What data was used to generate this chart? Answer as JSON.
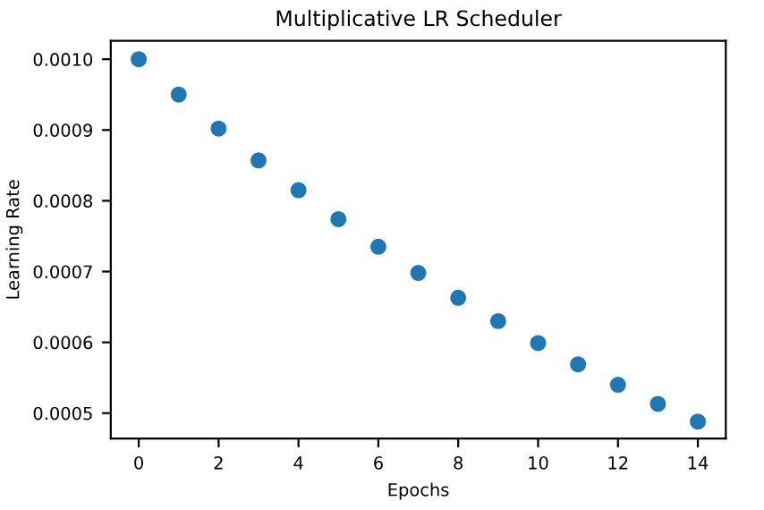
{
  "chart_data": {
    "type": "scatter",
    "title": "Multiplicative LR Scheduler",
    "xlabel": "Epochs",
    "ylabel": "Learning Rate",
    "x": [
      0,
      1,
      2,
      3,
      4,
      5,
      6,
      7,
      8,
      9,
      10,
      11,
      12,
      13,
      14
    ],
    "series": [
      {
        "color": "#1f77b4",
        "values": [
          0.001,
          0.00095,
          0.000902,
          0.000857,
          0.000815,
          0.000774,
          0.000735,
          0.000698,
          0.000663,
          0.00063,
          0.000599,
          0.000569,
          0.00054,
          0.000513,
          0.000488
        ]
      }
    ],
    "xlim": [
      -0.7,
      14.7
    ],
    "ylim": [
      0.000464,
      0.001026
    ],
    "xticks": [
      0,
      2,
      4,
      6,
      8,
      10,
      12,
      14
    ],
    "yticks": [
      {
        "value": 0.0005,
        "label": "0.0005"
      },
      {
        "value": 0.0006,
        "label": "0.0006"
      },
      {
        "value": 0.0007,
        "label": "0.0007"
      },
      {
        "value": 0.0008,
        "label": "0.0008"
      },
      {
        "value": 0.0009,
        "label": "0.0009"
      },
      {
        "value": 0.001,
        "label": "0.0010"
      }
    ],
    "marker": "circle",
    "grid": false,
    "legend": false
  }
}
